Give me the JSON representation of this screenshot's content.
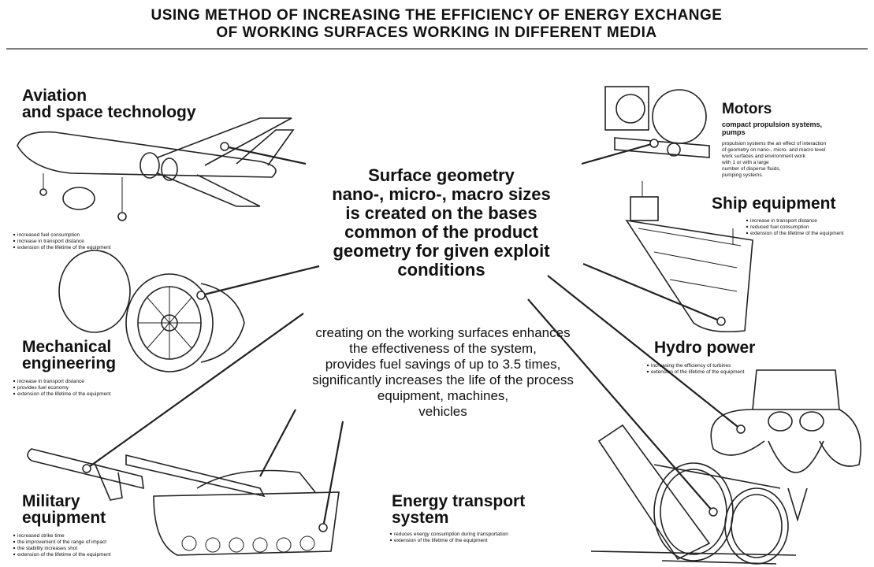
{
  "header": {
    "title_lines": [
      "USING METHOD OF INCREASING THE EFFICIENCY OF ENERGY EXCHANGE",
      "OF WORKING SURFACES WORKING IN DIFFERENT MEDIA"
    ]
  },
  "center": {
    "headline_lines": [
      "Surface geometry",
      "nano-, micro-, macro sizes",
      "is created  on the bases",
      "common of the product",
      "geometry for given exploit",
      "conditions"
    ],
    "statement_lines": [
      "creating on the working surfaces enhances",
      "the effectiveness of the system,",
      "provides fuel savings of up to 3.5 times,",
      "significantly increases the life of the process",
      "equipment, machines,",
      "vehicles"
    ]
  },
  "sections": [
    {
      "title_lines": [
        "Aviation",
        "and space technology"
      ],
      "bullets": [
        "increased fuel consumption",
        "increase in transport distance",
        "extension of the lifetime of the equipment"
      ]
    },
    {
      "title_lines": [
        "Mechanical",
        "engineering"
      ],
      "bullets": [
        "increase in transport distance",
        "provides fuel economy",
        "extension of the lifetime of the equipment"
      ]
    },
    {
      "title_lines": [
        "Military",
        "equipment"
      ],
      "bullets": [
        "increased strike time",
        "the improvement of the range of impact",
        "the stability increases shot",
        "extension of the lifetime of the equipment"
      ]
    },
    {
      "title_lines": [
        "Energy transport",
        "system"
      ],
      "bullets": [
        "reduces energy consumption during transportation",
        "extension of the lifetime of the equipment"
      ]
    },
    {
      "title_lines": [
        "Hydro power"
      ],
      "bullets": [
        "increasing the efficiency of turbines",
        "extension of the lifetime of the equipment"
      ]
    },
    {
      "title_lines": [
        "Ship equipment"
      ],
      "bullets": [
        "increase in transport distance",
        "reduced fuel consumption",
        "extension of the lifetime of the equipment"
      ]
    },
    {
      "title_lines": [
        "Motors"
      ],
      "subtitle_lines": [
        "compact propulsion systems,",
        "pumps"
      ],
      "description_lines": [
        "propulsion systems the an effect of interaction",
        "of geometry on nano-, micro- and macro level",
        "work surfaces and environment work",
        "with 1 or with a large",
        "number of disperse fluids,",
        "pumping systems."
      ]
    }
  ]
}
